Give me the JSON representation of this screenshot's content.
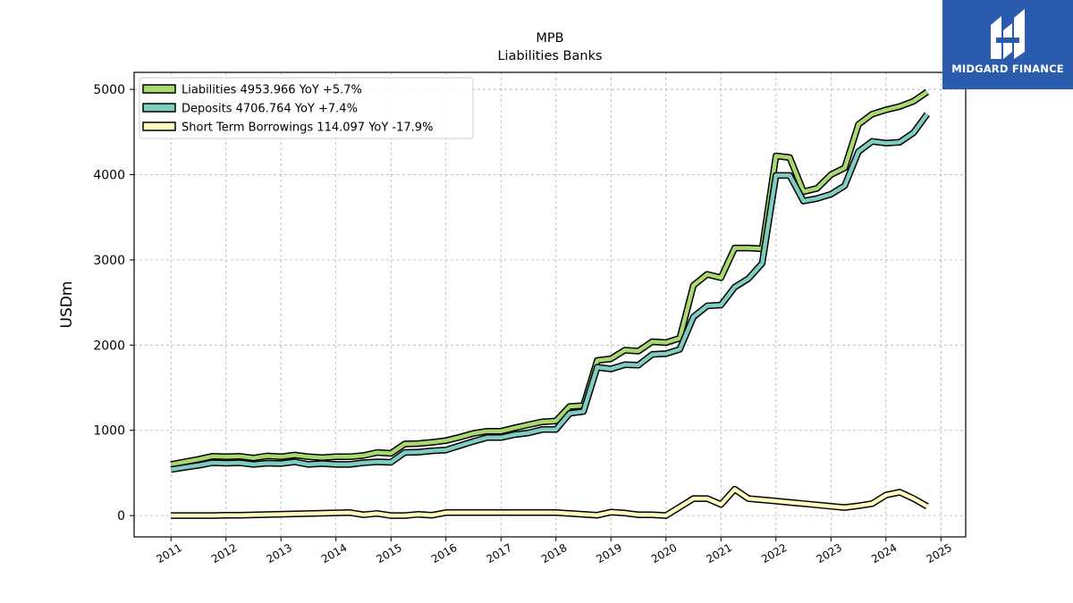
{
  "chart_data": {
    "type": "line",
    "title": "MPB",
    "subtitle": "Liabilities Banks",
    "xlabel": "",
    "ylabel": "USDm",
    "xlim": [
      2010.33,
      2025.45
    ],
    "ylim": [
      -250,
      5200
    ],
    "x_ticks": [
      "2011",
      "2012",
      "2013",
      "2014",
      "2015",
      "2016",
      "2017",
      "2018",
      "2019",
      "2020",
      "2021",
      "2022",
      "2023",
      "2024",
      "2025"
    ],
    "y_ticks": [
      0,
      1000,
      2000,
      3000,
      4000,
      5000
    ],
    "grid": true,
    "legend_position": "top-left",
    "series": [
      {
        "name": "Liabilities",
        "legend": "Liabilities  4953.966 YoY +5.7%",
        "color": "#a8d86e",
        "x": [
          2011.0,
          2011.25,
          2011.5,
          2011.75,
          2012.0,
          2012.25,
          2012.5,
          2012.75,
          2013.0,
          2013.25,
          2013.5,
          2013.75,
          2014.0,
          2014.25,
          2014.5,
          2014.75,
          2015.0,
          2015.25,
          2015.5,
          2015.75,
          2016.0,
          2016.25,
          2016.5,
          2016.75,
          2017.0,
          2017.25,
          2017.5,
          2017.75,
          2018.0,
          2018.25,
          2018.5,
          2018.75,
          2019.0,
          2019.25,
          2019.5,
          2019.75,
          2020.0,
          2020.25,
          2020.5,
          2020.75,
          2021.0,
          2021.25,
          2021.5,
          2021.75,
          2022.0,
          2022.25,
          2022.5,
          2022.75,
          2023.0,
          2023.25,
          2023.5,
          2023.75,
          2024.0,
          2024.25,
          2024.5,
          2024.75
        ],
        "values": [
          600,
          630,
          660,
          695,
          690,
          695,
          675,
          700,
          690,
          710,
          690,
          680,
          690,
          690,
          705,
          740,
          730,
          840,
          845,
          860,
          880,
          920,
          965,
          990,
          990,
          1030,
          1065,
          1100,
          1110,
          1280,
          1290,
          1820,
          1840,
          1940,
          1930,
          2040,
          2030,
          2080,
          2700,
          2830,
          2790,
          3140,
          3140,
          3130,
          4220,
          4200,
          3800,
          3840,
          4000,
          4080,
          4590,
          4710,
          4760,
          4800,
          4860,
          4970
        ]
      },
      {
        "name": "Deposits",
        "legend": "Deposits  4706.764 YoY +7.4%",
        "color": "#7ecdc0",
        "x": [
          2011.0,
          2011.25,
          2011.5,
          2011.75,
          2012.0,
          2012.25,
          2012.5,
          2012.75,
          2013.0,
          2013.25,
          2013.5,
          2013.75,
          2014.0,
          2014.25,
          2014.5,
          2014.75,
          2015.0,
          2015.25,
          2015.5,
          2015.75,
          2016.0,
          2016.25,
          2016.5,
          2016.75,
          2017.0,
          2017.25,
          2017.5,
          2017.75,
          2018.0,
          2018.25,
          2018.5,
          2018.75,
          2019.0,
          2019.25,
          2019.5,
          2019.75,
          2020.0,
          2020.25,
          2020.5,
          2020.75,
          2021.0,
          2021.25,
          2021.5,
          2021.75,
          2022.0,
          2022.25,
          2022.5,
          2022.75,
          2023.0,
          2023.25,
          2023.5,
          2023.75,
          2024.0,
          2024.25,
          2024.5,
          2024.75
        ],
        "values": [
          540,
          565,
          590,
          620,
          615,
          620,
          600,
          615,
          610,
          630,
          600,
          610,
          600,
          600,
          620,
          630,
          625,
          740,
          745,
          760,
          770,
          820,
          870,
          915,
          915,
          950,
          970,
          1010,
          1010,
          1200,
          1220,
          1740,
          1720,
          1770,
          1765,
          1890,
          1900,
          1950,
          2330,
          2460,
          2470,
          2680,
          2780,
          2960,
          3990,
          3990,
          3690,
          3720,
          3770,
          3870,
          4270,
          4390,
          4370,
          4380,
          4490,
          4710
        ]
      },
      {
        "name": "Short Term Borrowings",
        "legend": "Short Term Borrowings  114.097 YoY -17.9%",
        "color": "#fffcc0",
        "x": [
          2011.0,
          2011.25,
          2011.5,
          2011.75,
          2012.0,
          2012.25,
          2012.5,
          2012.75,
          2013.0,
          2013.25,
          2013.5,
          2013.75,
          2014.0,
          2014.25,
          2014.5,
          2014.75,
          2015.0,
          2015.25,
          2015.5,
          2015.75,
          2016.0,
          2016.25,
          2016.5,
          2016.75,
          2017.0,
          2017.25,
          2017.5,
          2017.75,
          2018.0,
          2018.25,
          2018.5,
          2018.75,
          2019.0,
          2019.25,
          2019.5,
          2019.75,
          2020.0,
          2020.25,
          2020.5,
          2020.75,
          2021.0,
          2021.25,
          2021.5,
          2021.75,
          2022.0,
          2022.25,
          2022.5,
          2022.75,
          2023.0,
          2023.25,
          2023.5,
          2023.75,
          2024.0,
          2024.25,
          2024.5,
          2024.75
        ],
        "values": [
          0,
          0,
          0,
          0,
          5,
          5,
          8,
          12,
          16,
          20,
          24,
          28,
          32,
          35,
          10,
          25,
          0,
          0,
          15,
          5,
          35,
          35,
          35,
          35,
          35,
          35,
          35,
          35,
          35,
          25,
          15,
          5,
          40,
          30,
          10,
          10,
          0,
          100,
          200,
          200,
          130,
          310,
          200,
          185,
          170,
          155,
          140,
          125,
          110,
          95,
          115,
          140,
          240,
          275,
          200,
          110
        ]
      }
    ]
  },
  "logo": {
    "text": "MIDGARD FINANCE",
    "background": "#2a5bad"
  }
}
